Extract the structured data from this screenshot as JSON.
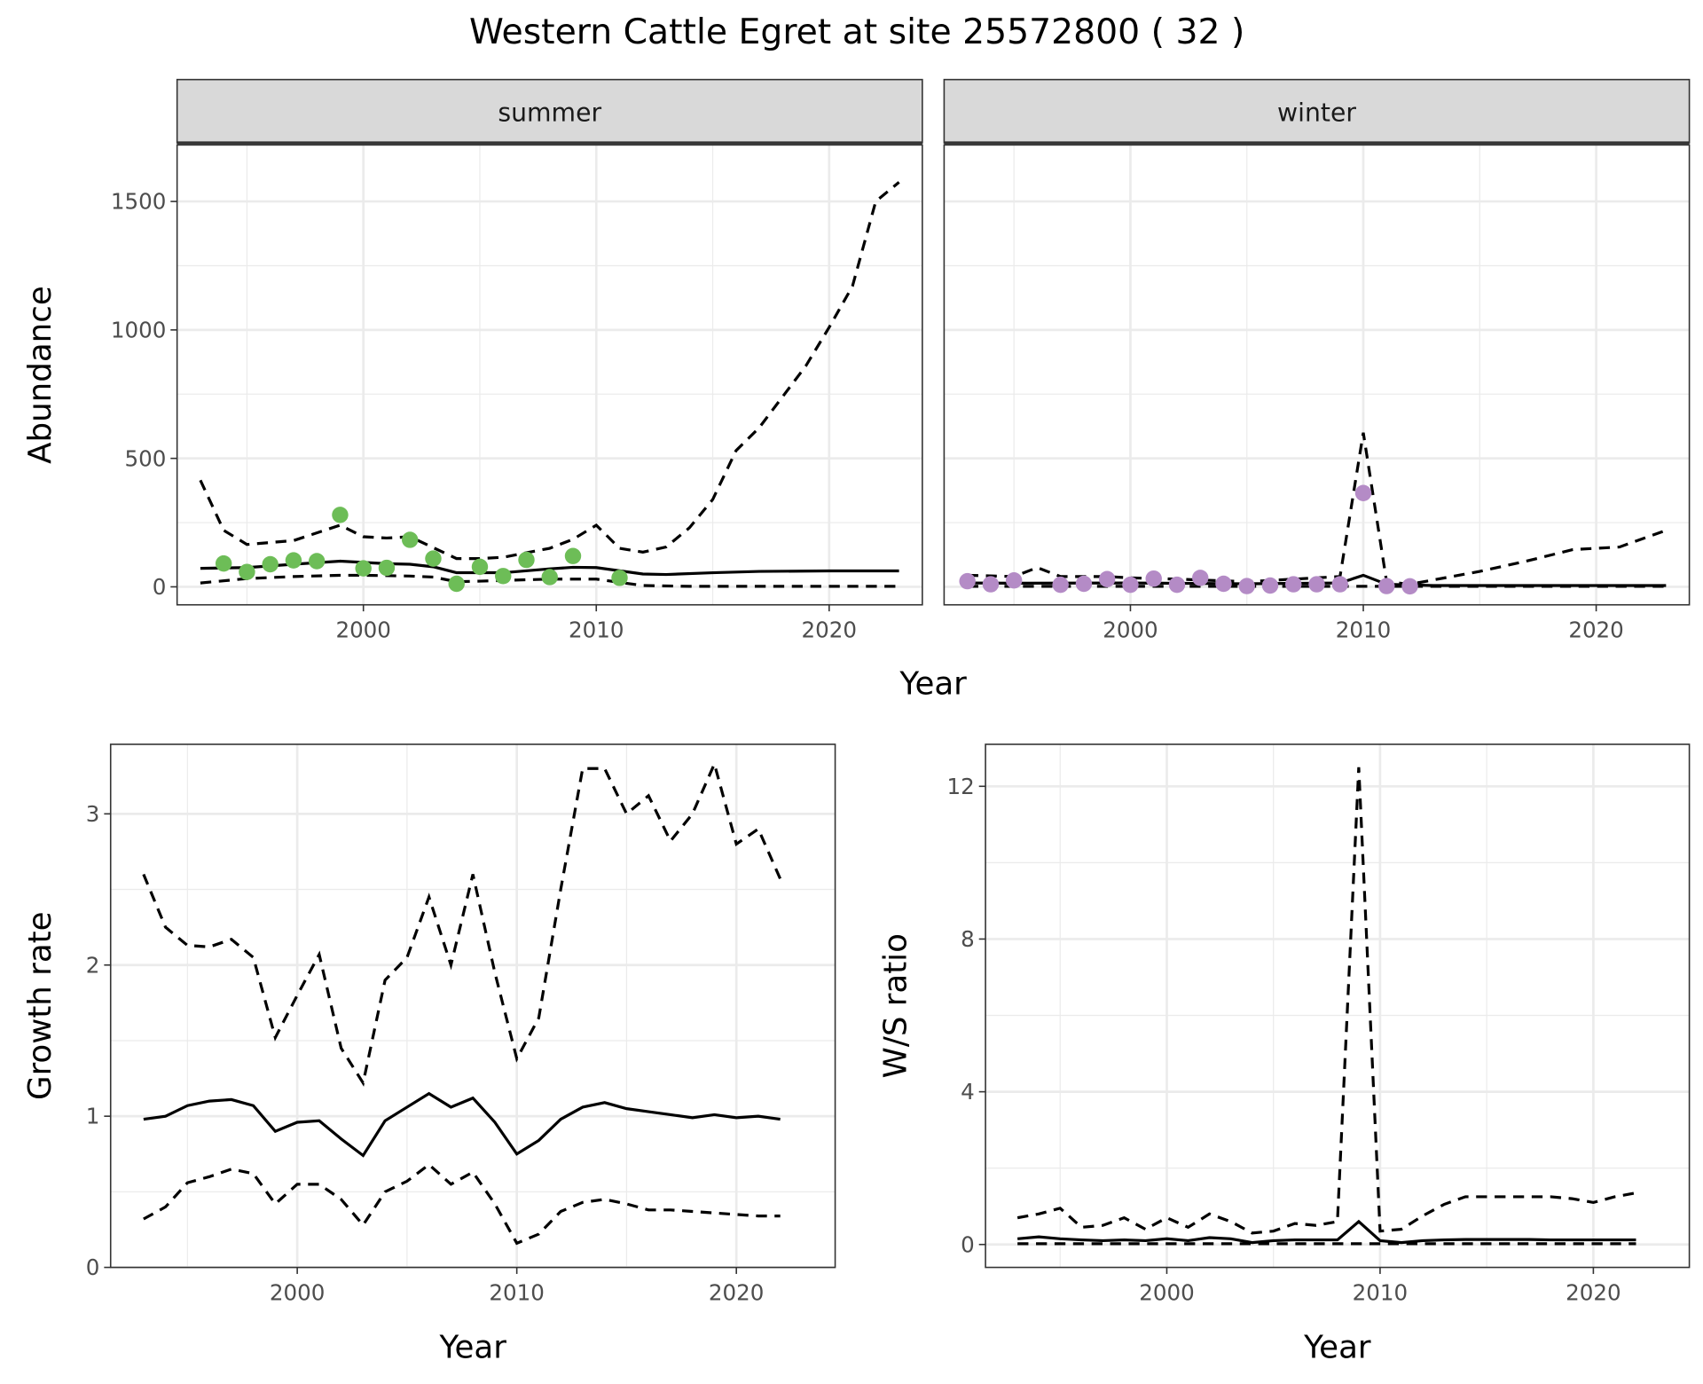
{
  "title": "Western Cattle Egret at site 25572800 ( 32 )",
  "colors": {
    "summer": "#6DBD57",
    "winter": "#B48BC6"
  },
  "chart_data": [
    {
      "type": "line",
      "panel": "summer",
      "strip": "summer",
      "xlabel": "Year",
      "ylabel": "Abundance",
      "xlim": [
        1992,
        2024
      ],
      "ylim": [
        -70,
        1720
      ],
      "xticks": [
        2000,
        2010,
        2020
      ],
      "yticks": [
        0,
        500,
        1000,
        1500
      ],
      "points": {
        "x": [
          1994,
          1995,
          1996,
          1997,
          1998,
          1999,
          2000,
          2001,
          2002,
          2003,
          2004,
          2005,
          2006,
          2007,
          2008,
          2009,
          2011
        ],
        "y": [
          91,
          58,
          88,
          103,
          100,
          280,
          72,
          74,
          183,
          110,
          12,
          78,
          42,
          105,
          38,
          120,
          35
        ]
      },
      "mean": {
        "x": [
          1993,
          1995,
          1997,
          1999,
          2001,
          2002,
          2003,
          2004,
          2006,
          2008,
          2009,
          2010,
          2012,
          2013,
          2015,
          2017,
          2020,
          2023
        ],
        "y": [
          72,
          75,
          88,
          100,
          90,
          88,
          78,
          55,
          55,
          70,
          76,
          75,
          50,
          48,
          55,
          60,
          62,
          62
        ]
      },
      "upper": {
        "x": [
          1993,
          1994,
          1995,
          1997,
          1999,
          2000,
          2001,
          2002,
          2004,
          2005,
          2006,
          2008,
          2009,
          2010,
          2011,
          2012,
          2013,
          2014,
          2015,
          2016,
          2017,
          2018,
          2019,
          2020,
          2021,
          2022,
          2023
        ],
        "y": [
          415,
          220,
          165,
          180,
          240,
          195,
          190,
          195,
          110,
          110,
          115,
          150,
          185,
          240,
          150,
          135,
          155,
          230,
          340,
          530,
          620,
          740,
          860,
          1010,
          1170,
          1500,
          1575
        ]
      },
      "lower": {
        "x": [
          1993,
          1995,
          1997,
          1999,
          2000,
          2002,
          2003,
          2004,
          2005,
          2006,
          2008,
          2010,
          2012,
          2014,
          2023
        ],
        "y": [
          15,
          32,
          40,
          45,
          45,
          42,
          38,
          20,
          22,
          25,
          30,
          30,
          5,
          2,
          2
        ]
      }
    },
    {
      "type": "line",
      "panel": "winter",
      "strip": "winter",
      "xlabel": "Year",
      "ylabel": "Abundance",
      "xlim": [
        1992,
        2024
      ],
      "ylim": [
        -70,
        1720
      ],
      "xticks": [
        2000,
        2010,
        2020
      ],
      "yticks": [
        0,
        500,
        1000,
        1500
      ],
      "points": {
        "x": [
          1993,
          1994,
          1995,
          1997,
          1998,
          1999,
          2000,
          2001,
          2002,
          2003,
          2004,
          2005,
          2006,
          2007,
          2008,
          2009,
          2010,
          2011,
          2012
        ],
        "y": [
          22,
          10,
          25,
          8,
          12,
          30,
          8,
          32,
          8,
          35,
          12,
          3,
          5,
          10,
          10,
          10,
          365,
          3,
          2
        ]
      },
      "mean": {
        "x": [
          1993,
          1995,
          2000,
          2005,
          2009,
          2010,
          2011,
          2013,
          2023
        ],
        "y": [
          15,
          14,
          15,
          12,
          15,
          45,
          10,
          5,
          5
        ]
      },
      "upper": {
        "x": [
          1993,
          1995,
          1996,
          1997,
          1999,
          2000,
          2002,
          2005,
          2009,
          2010,
          2011,
          2012,
          2015,
          2017,
          2019,
          2020,
          2021,
          2023
        ],
        "y": [
          45,
          40,
          75,
          40,
          40,
          35,
          30,
          20,
          40,
          600,
          20,
          10,
          60,
          100,
          145,
          150,
          155,
          220
        ]
      },
      "lower": {
        "x": [
          1993,
          2023
        ],
        "y": [
          2,
          2
        ]
      }
    },
    {
      "type": "line",
      "panel": "growth",
      "xlabel": "Year",
      "ylabel": "Growth rate",
      "xlim": [
        1991.5,
        2024.5
      ],
      "ylim": [
        0,
        3.46
      ],
      "xticks": [
        2000,
        2010,
        2020
      ],
      "yticks": [
        0,
        1,
        2,
        3
      ],
      "mean": {
        "x0": 1993,
        "y": [
          0.98,
          1.0,
          1.07,
          1.1,
          1.11,
          1.07,
          0.9,
          0.96,
          0.97,
          0.85,
          0.74,
          0.97,
          1.06,
          1.15,
          1.06,
          1.12,
          0.96,
          0.75,
          0.84,
          0.98,
          1.06,
          1.09,
          1.05,
          1.03,
          1.01,
          0.99,
          1.01,
          0.99,
          1.0,
          0.98
        ]
      },
      "upper": {
        "x0": 1993,
        "y": [
          2.6,
          2.25,
          2.13,
          2.12,
          2.17,
          2.05,
          1.52,
          1.8,
          2.07,
          1.45,
          1.22,
          1.9,
          2.05,
          2.45,
          2.0,
          2.6,
          1.95,
          1.38,
          1.65,
          2.5,
          3.3,
          3.3,
          3.0,
          3.12,
          2.82,
          3.0,
          3.33,
          2.8,
          2.9,
          2.57
        ]
      },
      "lower": {
        "x0": 1993,
        "y": [
          0.32,
          0.4,
          0.56,
          0.6,
          0.65,
          0.62,
          0.42,
          0.55,
          0.55,
          0.45,
          0.28,
          0.5,
          0.57,
          0.68,
          0.55,
          0.63,
          0.42,
          0.16,
          0.22,
          0.37,
          0.43,
          0.45,
          0.42,
          0.38,
          0.38,
          0.37,
          0.36,
          0.35,
          0.34,
          0.34
        ]
      }
    },
    {
      "type": "line",
      "panel": "ratio",
      "xlabel": "Year",
      "ylabel": "W/S ratio",
      "xlim": [
        1991.5,
        2024.5
      ],
      "ylim": [
        -0.6,
        13.1
      ],
      "xticks": [
        2000,
        2010,
        2020
      ],
      "yticks": [
        0,
        4,
        8,
        12
      ],
      "mean": {
        "x0": 1993,
        "y": [
          0.15,
          0.2,
          0.15,
          0.12,
          0.1,
          0.12,
          0.1,
          0.15,
          0.1,
          0.18,
          0.15,
          0.05,
          0.1,
          0.12,
          0.12,
          0.12,
          0.6,
          0.1,
          0.05,
          0.1,
          0.12,
          0.13,
          0.13,
          0.13,
          0.13,
          0.12,
          0.12,
          0.12,
          0.12,
          0.12
        ]
      },
      "upper": {
        "x0": 1993,
        "y": [
          0.7,
          0.8,
          0.95,
          0.45,
          0.5,
          0.7,
          0.4,
          0.7,
          0.45,
          0.8,
          0.6,
          0.3,
          0.35,
          0.55,
          0.5,
          0.6,
          12.5,
          0.35,
          0.4,
          0.75,
          1.05,
          1.25,
          1.25,
          1.25,
          1.25,
          1.25,
          1.2,
          1.1,
          1.25,
          1.35
        ]
      },
      "lower": {
        "x0": 1993,
        "y": [
          0.02,
          0.02,
          0.02,
          0.02,
          0.02,
          0.02,
          0.02,
          0.02,
          0.02,
          0.02,
          0.02,
          0.02,
          0.02,
          0.02,
          0.02,
          0.02,
          0.02,
          0.02,
          0.02,
          0.02,
          0.02,
          0.02,
          0.02,
          0.02,
          0.02,
          0.02,
          0.02,
          0.02,
          0.02,
          0.02
        ]
      }
    }
  ]
}
